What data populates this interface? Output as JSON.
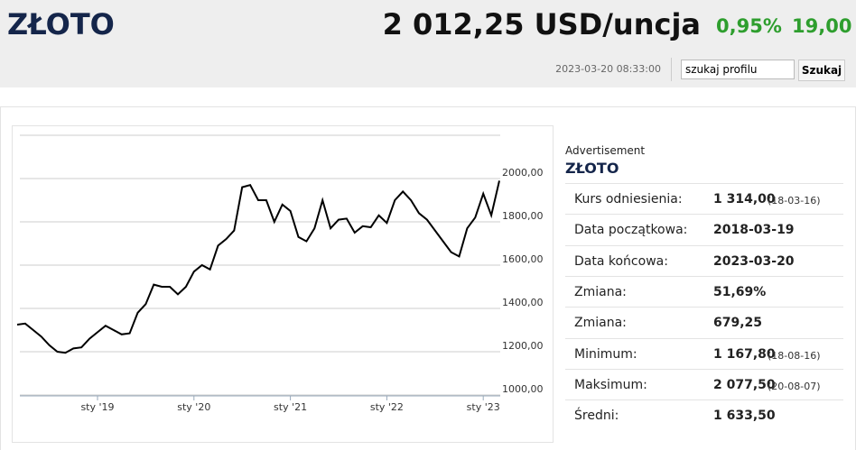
{
  "header": {
    "title": "ZŁOTO",
    "price": "2 012,25 USD/uncja",
    "change_pct": "0,95%",
    "change": "19,00",
    "timestamp": "2023-03-20 08:33:00",
    "search_text": "szukaj profilu",
    "search_button": "Szukaj"
  },
  "chart_data": {
    "type": "line",
    "color": "#000000",
    "categories": [
      null,
      null,
      null,
      null,
      null,
      null,
      null,
      null,
      null,
      null,
      "sty '19",
      null,
      null,
      null,
      null,
      null,
      null,
      null,
      null,
      null,
      null,
      null,
      "sty '20",
      null,
      null,
      null,
      null,
      null,
      null,
      null,
      null,
      null,
      null,
      null,
      "sty '21",
      null,
      null,
      null,
      null,
      null,
      null,
      null,
      null,
      null,
      null,
      null,
      "sty '22",
      null,
      null,
      null,
      null,
      null,
      null,
      null,
      null,
      null,
      null,
      null,
      "sty '23",
      null,
      null
    ],
    "values": [
      1325,
      1330,
      1300,
      1270,
      1230,
      1200,
      1195,
      1215,
      1220,
      1260,
      1290,
      1320,
      1300,
      1280,
      1285,
      1380,
      1420,
      1510,
      1500,
      1500,
      1465,
      1500,
      1570,
      1600,
      1580,
      1690,
      1720,
      1760,
      1960,
      1970,
      1900,
      1900,
      1800,
      1880,
      1850,
      1730,
      1710,
      1770,
      1900,
      1770,
      1810,
      1815,
      1750,
      1780,
      1775,
      1830,
      1795,
      1900,
      1940,
      1900,
      1840,
      1810,
      1760,
      1710,
      1660,
      1640,
      1770,
      1820,
      1930,
      1830,
      1990
    ],
    "ylim": [
      1000,
      2200
    ],
    "yticks": [
      {
        "value": 1000,
        "label": "1000,00"
      },
      {
        "value": 1200,
        "label": "1200,00"
      },
      {
        "value": 1400,
        "label": "1400,00"
      },
      {
        "value": 1600,
        "label": "1600,00"
      },
      {
        "value": 1800,
        "label": "1800,00"
      },
      {
        "value": 2000,
        "label": "2000,00"
      }
    ],
    "grid": true
  },
  "stats": {
    "ad": "Advertisement",
    "title": "ZŁOTO",
    "rows": [
      [
        "Kurs odniesienia:",
        "1 314,00",
        "(18-03-16)"
      ],
      [
        "Data początkowa:",
        "2018-03-19"
      ],
      [
        "Data końcowa:",
        "2023-03-20"
      ],
      [
        "Zmiana:",
        "51,69%"
      ],
      [
        "Zmiana:",
        "679,25"
      ],
      [
        "Minimum:",
        "1 167,80",
        "(18-08-16)"
      ],
      [
        "Maksimum:",
        "2 077,50",
        "(20-08-07)"
      ],
      [
        "Średni:",
        "1 633,50"
      ]
    ]
  }
}
